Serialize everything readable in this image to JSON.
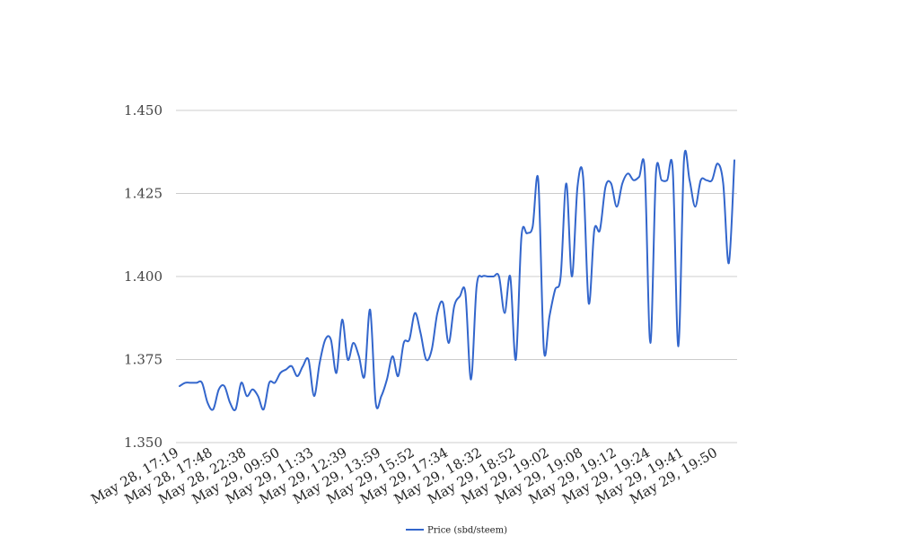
{
  "chart_data": {
    "type": "line",
    "title": "",
    "xlabel": "",
    "ylabel": "",
    "ylim": [
      1.35,
      1.45
    ],
    "yticks": [
      "1.350",
      "1.375",
      "1.400",
      "1.425",
      "1.450"
    ],
    "xtick_labels": [
      "May 28, 17:19",
      "May 28, 17:48",
      "May 28, 22:38",
      "May 29, 09:50",
      "May 29, 11:33",
      "May 29, 12:39",
      "May 29, 13:59",
      "May 29, 15:52",
      "May 29, 17:34",
      "May 29, 18:32",
      "May 29, 18:52",
      "May 29, 19:02",
      "May 29, 19:08",
      "May 29, 19:12",
      "May 29, 19:24",
      "May 29, 19:41",
      "May 29, 19:50"
    ],
    "grid": true,
    "legend_position": "bottom",
    "colors": {
      "series": "#3366cc",
      "grid": "#cccccc"
    },
    "series": [
      {
        "name": "Price (sbd/steem)",
        "values": [
          1.367,
          1.368,
          1.368,
          1.368,
          1.368,
          1.362,
          1.36,
          1.366,
          1.367,
          1.362,
          1.36,
          1.368,
          1.364,
          1.366,
          1.364,
          1.36,
          1.368,
          1.368,
          1.371,
          1.372,
          1.373,
          1.37,
          1.373,
          1.375,
          1.364,
          1.374,
          1.381,
          1.381,
          1.371,
          1.387,
          1.375,
          1.38,
          1.376,
          1.37,
          1.39,
          1.362,
          1.364,
          1.369,
          1.376,
          1.37,
          1.38,
          1.381,
          1.389,
          1.383,
          1.375,
          1.378,
          1.389,
          1.392,
          1.38,
          1.391,
          1.394,
          1.395,
          1.369,
          1.397,
          1.4,
          1.4,
          1.4,
          1.4,
          1.389,
          1.4,
          1.375,
          1.412,
          1.413,
          1.415,
          1.429,
          1.378,
          1.388,
          1.396,
          1.4,
          1.428,
          1.4,
          1.427,
          1.43,
          1.392,
          1.414,
          1.414,
          1.427,
          1.428,
          1.421,
          1.428,
          1.431,
          1.429,
          1.43,
          1.432,
          1.38,
          1.431,
          1.429,
          1.429,
          1.432,
          1.379,
          1.435,
          1.429,
          1.421,
          1.429,
          1.429,
          1.429,
          1.434,
          1.428,
          1.404,
          1.435
        ]
      }
    ]
  }
}
